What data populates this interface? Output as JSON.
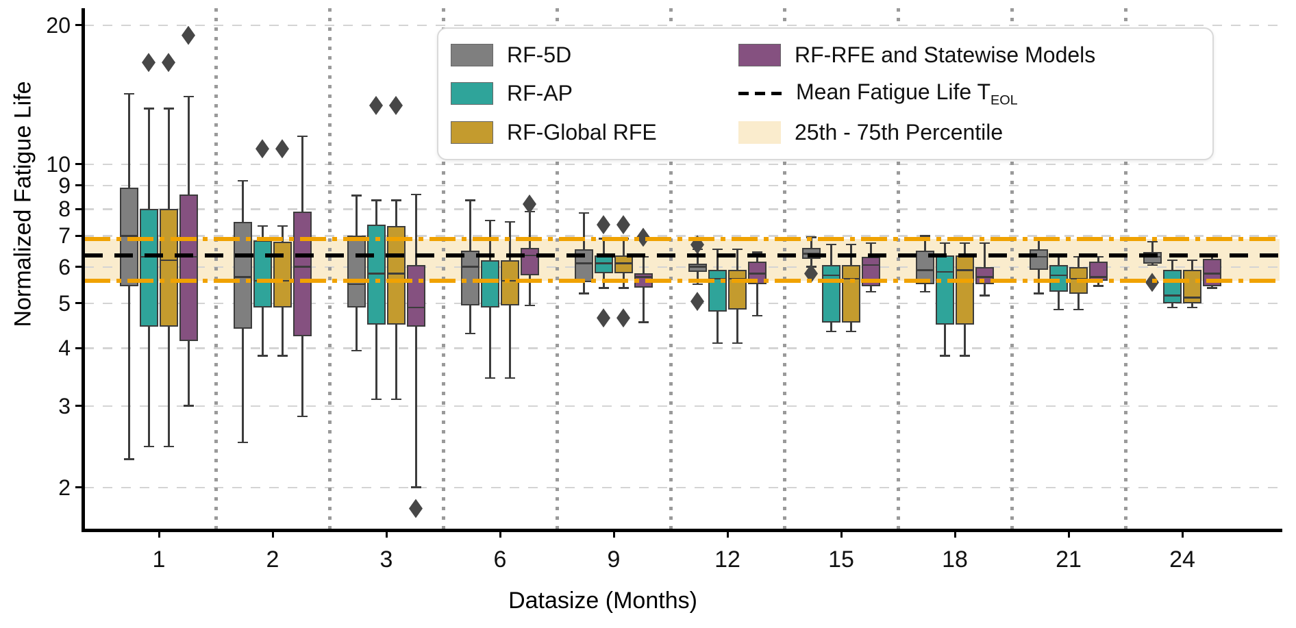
{
  "chart_data": {
    "type": "box",
    "title": "",
    "xlabel": "Datasize (Months)",
    "ylabel": "Normalized Fatigue Life",
    "yscale": "log",
    "ylim": [
      1.6,
      21.5
    ],
    "yticks": [
      20,
      10,
      9,
      8,
      7,
      6,
      5,
      4,
      3,
      2
    ],
    "categories": [
      "1",
      "2",
      "3",
      "6",
      "9",
      "12",
      "15",
      "18",
      "21",
      "24"
    ],
    "grid": true,
    "legend_position": "upper center",
    "style": {
      "grid_color": "#d4d4d4",
      "separator_color": "#9a9a9a",
      "box_edge_color": "#3c3c3c",
      "flier_color": "#474747",
      "spine_color": "#000000"
    },
    "series": [
      {
        "name": "RF-5D",
        "color": "#7f7f7f",
        "boxes": [
          {
            "whislo": 2.3,
            "q1": 5.45,
            "med": 7.0,
            "q3": 8.9,
            "whishi": 14.2,
            "fliers": []
          },
          {
            "whislo": 2.5,
            "q1": 4.4,
            "med": 5.7,
            "q3": 7.5,
            "whishi": 9.2,
            "fliers": []
          },
          {
            "whislo": 3.95,
            "q1": 4.9,
            "med": 5.5,
            "q3": 7.0,
            "whishi": 8.55,
            "fliers": []
          },
          {
            "whislo": 4.3,
            "q1": 4.95,
            "med": 6.0,
            "q3": 6.5,
            "whishi": 8.35,
            "fliers": []
          },
          {
            "whislo": 5.25,
            "q1": 5.55,
            "med": 6.1,
            "q3": 6.55,
            "whishi": 7.85,
            "fliers": []
          },
          {
            "whislo": 5.5,
            "q1": 5.85,
            "med": 6.0,
            "q3": 6.1,
            "whishi": 6.55,
            "fliers": [
              6.7,
              5.05
            ]
          },
          {
            "whislo": 6.0,
            "q1": 6.25,
            "med": 6.4,
            "q3": 6.6,
            "whishi": 6.95,
            "fliers": [
              5.8
            ]
          },
          {
            "whislo": 5.3,
            "q1": 5.5,
            "med": 5.9,
            "q3": 6.5,
            "whishi": 7.0,
            "fliers": []
          },
          {
            "whislo": 5.25,
            "q1": 5.9,
            "med": 6.3,
            "q3": 6.55,
            "whishi": 6.9,
            "fliers": []
          },
          {
            "whislo": 6.05,
            "q1": 6.1,
            "med": 6.3,
            "q3": 6.45,
            "whishi": 6.8,
            "fliers": [
              5.55
            ]
          }
        ]
      },
      {
        "name": "RF-AP",
        "color": "#2fa49a",
        "boxes": [
          {
            "whislo": 2.45,
            "q1": 4.45,
            "med": 6.3,
            "q3": 8.0,
            "whishi": 13.2,
            "fliers": [
              16.6
            ]
          },
          {
            "whislo": 3.85,
            "q1": 4.9,
            "med": 5.6,
            "q3": 6.85,
            "whishi": 7.35,
            "fliers": [
              10.8
            ]
          },
          {
            "whislo": 3.1,
            "q1": 4.5,
            "med": 5.8,
            "q3": 7.4,
            "whishi": 8.35,
            "fliers": [
              13.4
            ]
          },
          {
            "whislo": 3.45,
            "q1": 4.9,
            "med": 5.6,
            "q3": 6.2,
            "whishi": 7.55,
            "fliers": []
          },
          {
            "whislo": 5.4,
            "q1": 5.8,
            "med": 6.1,
            "q3": 6.35,
            "whishi": 6.9,
            "fliers": [
              7.4,
              4.65
            ]
          },
          {
            "whislo": 4.1,
            "q1": 4.8,
            "med": 5.65,
            "q3": 5.9,
            "whishi": 6.55,
            "fliers": []
          },
          {
            "whislo": 4.35,
            "q1": 4.55,
            "med": 5.75,
            "q3": 6.05,
            "whishi": 6.7,
            "fliers": []
          },
          {
            "whislo": 3.85,
            "q1": 4.5,
            "med": 5.85,
            "q3": 6.35,
            "whishi": 6.75,
            "fliers": []
          },
          {
            "whislo": 4.85,
            "q1": 5.3,
            "med": 5.75,
            "q3": 6.05,
            "whishi": 6.3,
            "fliers": []
          },
          {
            "whislo": 4.9,
            "q1": 5.0,
            "med": 5.2,
            "q3": 5.9,
            "whishi": 6.2,
            "fliers": []
          }
        ]
      },
      {
        "name": "RF-Global RFE",
        "color": "#c49b2e",
        "boxes": [
          {
            "whislo": 2.45,
            "q1": 4.45,
            "med": 6.2,
            "q3": 8.0,
            "whishi": 13.2,
            "fliers": [
              16.6
            ]
          },
          {
            "whislo": 3.85,
            "q1": 4.9,
            "med": 5.6,
            "q3": 6.8,
            "whishi": 7.35,
            "fliers": [
              10.8
            ]
          },
          {
            "whislo": 3.1,
            "q1": 4.5,
            "med": 5.8,
            "q3": 7.35,
            "whishi": 8.35,
            "fliers": [
              13.4
            ]
          },
          {
            "whislo": 3.45,
            "q1": 4.95,
            "med": 5.6,
            "q3": 6.2,
            "whishi": 7.5,
            "fliers": []
          },
          {
            "whislo": 5.4,
            "q1": 5.8,
            "med": 6.1,
            "q3": 6.35,
            "whishi": 6.9,
            "fliers": [
              7.4,
              4.65
            ]
          },
          {
            "whislo": 4.1,
            "q1": 4.85,
            "med": 5.65,
            "q3": 5.9,
            "whishi": 6.55,
            "fliers": []
          },
          {
            "whislo": 4.35,
            "q1": 4.55,
            "med": 5.65,
            "q3": 6.05,
            "whishi": 6.7,
            "fliers": []
          },
          {
            "whislo": 3.85,
            "q1": 4.5,
            "med": 5.9,
            "q3": 6.35,
            "whishi": 6.75,
            "fliers": []
          },
          {
            "whislo": 4.85,
            "q1": 5.25,
            "med": 5.65,
            "q3": 6.0,
            "whishi": 6.3,
            "fliers": []
          },
          {
            "whislo": 4.9,
            "q1": 5.0,
            "med": 5.15,
            "q3": 5.9,
            "whishi": 6.2,
            "fliers": []
          }
        ]
      },
      {
        "name": "RF-RFE and Statewise Models",
        "color": "#855180",
        "boxes": [
          {
            "whislo": 3.0,
            "q1": 4.15,
            "med": 6.3,
            "q3": 8.6,
            "whishi": 14.0,
            "fliers": [
              19.0
            ]
          },
          {
            "whislo": 2.85,
            "q1": 4.25,
            "med": 6.0,
            "q3": 7.9,
            "whishi": 11.5,
            "fliers": []
          },
          {
            "whislo": 2.0,
            "q1": 4.45,
            "med": 4.9,
            "q3": 6.05,
            "whishi": 8.6,
            "fliers": [
              1.8
            ]
          },
          {
            "whislo": 4.95,
            "q1": 5.75,
            "med": 6.35,
            "q3": 6.6,
            "whishi": 7.9,
            "fliers": [
              8.2
            ]
          },
          {
            "whislo": 4.55,
            "q1": 5.4,
            "med": 5.7,
            "q3": 5.8,
            "whishi": 6.3,
            "fliers": [
              6.95
            ]
          },
          {
            "whislo": 4.7,
            "q1": 5.5,
            "med": 5.8,
            "q3": 6.15,
            "whishi": 6.45,
            "fliers": []
          },
          {
            "whislo": 5.3,
            "q1": 5.45,
            "med": 6.05,
            "q3": 6.3,
            "whishi": 6.75,
            "fliers": []
          },
          {
            "whislo": 5.2,
            "q1": 5.5,
            "med": 5.7,
            "q3": 6.0,
            "whishi": 6.75,
            "fliers": []
          },
          {
            "whislo": 5.45,
            "q1": 5.6,
            "med": 5.7,
            "q3": 6.15,
            "whishi": 6.3,
            "fliers": []
          },
          {
            "whislo": 5.4,
            "q1": 5.45,
            "med": 5.8,
            "q3": 6.25,
            "whishi": 6.35,
            "fliers": []
          }
        ]
      }
    ],
    "reference": {
      "mean_line": {
        "value": 6.35,
        "color": "#000000",
        "style": "dashed"
      },
      "percentile_band": {
        "low": 5.6,
        "high": 6.9,
        "fill": "#faeccd",
        "edge_color": "#f0a202",
        "edge_style": "dash-dot"
      }
    },
    "legend": {
      "items_col1": [
        {
          "label": "RF-5D"
        },
        {
          "label": "RF-AP"
        },
        {
          "label": "RF-Global RFE"
        }
      ],
      "items_col2": [
        {
          "label": "RF-RFE and Statewise Models"
        },
        {
          "label_main": "Mean Fatigue Life T",
          "label_sub": "EOL"
        },
        {
          "label": "25th - 75th Percentile"
        }
      ]
    }
  }
}
